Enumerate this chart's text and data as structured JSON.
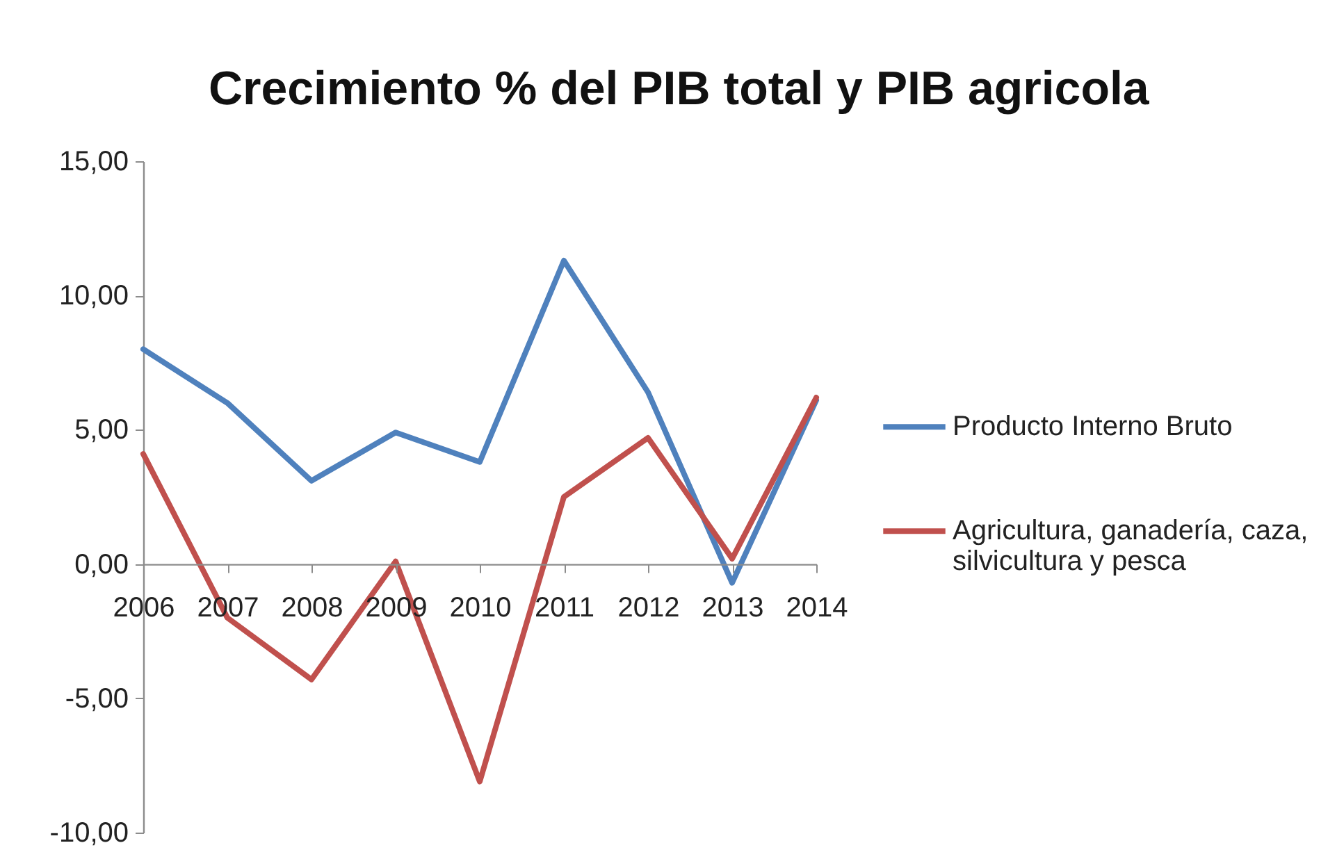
{
  "chart_data": {
    "type": "line",
    "title": "Crecimiento % del PIB total y PIB agricola",
    "categories": [
      "2006",
      "2007",
      "2008",
      "2009",
      "2010",
      "2011",
      "2012",
      "2013",
      "2014"
    ],
    "series": [
      {
        "name": "Producto Interno Bruto",
        "color": "#4f81bd",
        "values": [
          8.0,
          6.0,
          3.1,
          4.9,
          3.8,
          11.3,
          6.4,
          -0.7,
          6.1
        ]
      },
      {
        "name": "Agricultura, ganadería, caza, silvicultura y pesca",
        "color": "#c0504d",
        "values": [
          4.1,
          -2.0,
          -4.3,
          0.1,
          -8.1,
          2.5,
          4.7,
          0.2,
          6.2
        ]
      }
    ],
    "ylim": [
      -10,
      15
    ],
    "yticks": [
      {
        "value": -10,
        "label": "-10,00"
      },
      {
        "value": -5,
        "label": "-5,00"
      },
      {
        "value": 0,
        "label": "0,00"
      },
      {
        "value": 5,
        "label": "5,00"
      },
      {
        "value": 10,
        "label": "10,00"
      },
      {
        "value": 15,
        "label": "15,00"
      }
    ],
    "legend": "right"
  }
}
